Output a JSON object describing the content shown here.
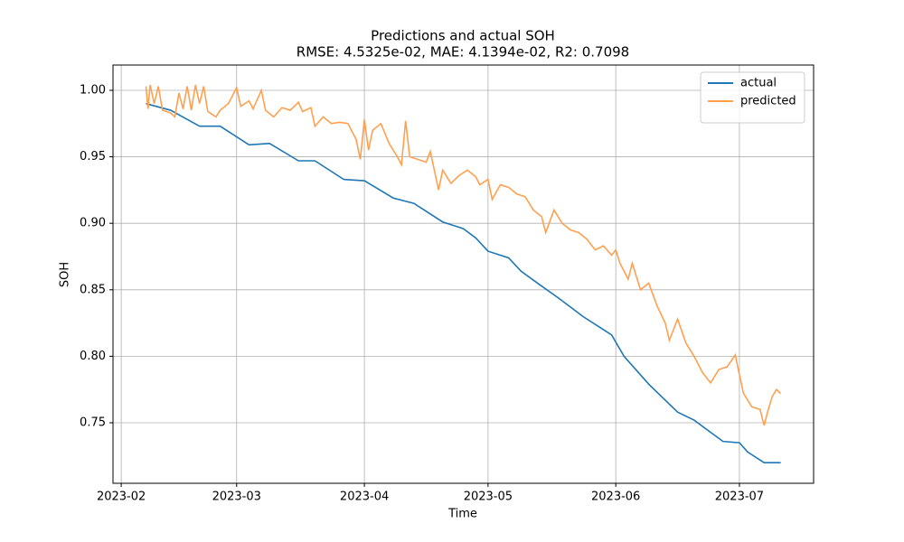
{
  "chart_data": {
    "type": "line",
    "title": "Predictions and actual SOH",
    "subtitle": "RMSE: 4.5325e-02, MAE: 4.1394e-02, R2: 0.7098",
    "x_label": "Time",
    "y_label": "SOH",
    "xlim": [
      29,
      199
    ],
    "xticks": [
      {
        "value": 31,
        "label": "2023-02"
      },
      {
        "value": 59,
        "label": "2023-03"
      },
      {
        "value": 90,
        "label": "2023-04"
      },
      {
        "value": 120,
        "label": "2023-05"
      },
      {
        "value": 151,
        "label": "2023-06"
      },
      {
        "value": 181,
        "label": "2023-07"
      }
    ],
    "ylim": [
      0.7045,
      1.019
    ],
    "yticks": [
      0.75,
      {
        "value": 0.8,
        "label": "0.80"
      },
      0.85,
      {
        "value": 0.9,
        "label": "0.90"
      },
      0.95,
      {
        "value": 1.0,
        "label": "1.00"
      }
    ],
    "grid": true,
    "legend": "upper right",
    "series": [
      {
        "name": "actual",
        "color": "#1f77b4",
        "x": [
          37,
          43,
          50,
          55,
          62,
          67,
          74,
          78,
          85,
          90,
          97,
          102,
          109,
          114,
          117,
          120,
          125,
          128,
          132,
          137,
          143,
          148,
          150,
          153,
          159,
          166,
          170,
          177,
          181,
          183,
          187,
          191
        ],
        "values": [
          0.99,
          0.985,
          0.973,
          0.973,
          0.959,
          0.96,
          0.947,
          0.947,
          0.933,
          0.932,
          0.919,
          0.915,
          0.901,
          0.896,
          0.889,
          0.879,
          0.874,
          0.864,
          0.855,
          0.844,
          0.83,
          0.82,
          0.816,
          0.8,
          0.779,
          0.758,
          0.752,
          0.736,
          0.735,
          0.728,
          0.72,
          0.72
        ]
      },
      {
        "name": "predicted",
        "color": "#ffa04f",
        "x": [
          37,
          37.5,
          38,
          39,
          40,
          41,
          43,
          44,
          45,
          46,
          47,
          48,
          49,
          50,
          51,
          52,
          54,
          55,
          57,
          59,
          60,
          62,
          63,
          65,
          66,
          68,
          70,
          72,
          74,
          75,
          77,
          78,
          80,
          82,
          84,
          86,
          88,
          89,
          90,
          91,
          92,
          94,
          96,
          98,
          99,
          100,
          101,
          103,
          105,
          106,
          108,
          109,
          111,
          113,
          115,
          117,
          118,
          120,
          121,
          123,
          125,
          127,
          129,
          131,
          133,
          134,
          136,
          138,
          140,
          142,
          144,
          146,
          148,
          150,
          151,
          152,
          154,
          155,
          157,
          159,
          161,
          163,
          164,
          166,
          168,
          170,
          172,
          174,
          176,
          178,
          180,
          181,
          182,
          184,
          186,
          187,
          188,
          189,
          190,
          191
        ],
        "values": [
          1.003,
          0.986,
          1.004,
          0.99,
          1.003,
          0.985,
          0.983,
          0.98,
          0.998,
          0.986,
          1.003,
          0.985,
          1.004,
          0.99,
          1.003,
          0.984,
          0.98,
          0.985,
          0.99,
          1.002,
          0.988,
          0.992,
          0.986,
          1.0,
          0.985,
          0.98,
          0.987,
          0.985,
          0.991,
          0.984,
          0.987,
          0.973,
          0.98,
          0.975,
          0.976,
          0.975,
          0.963,
          0.948,
          0.978,
          0.955,
          0.97,
          0.975,
          0.96,
          0.95,
          0.944,
          0.977,
          0.95,
          0.948,
          0.946,
          0.954,
          0.925,
          0.94,
          0.93,
          0.936,
          0.94,
          0.935,
          0.929,
          0.933,
          0.918,
          0.929,
          0.927,
          0.922,
          0.92,
          0.91,
          0.905,
          0.893,
          0.91,
          0.9,
          0.895,
          0.893,
          0.888,
          0.88,
          0.883,
          0.876,
          0.88,
          0.87,
          0.858,
          0.87,
          0.85,
          0.855,
          0.838,
          0.825,
          0.812,
          0.828,
          0.81,
          0.8,
          0.788,
          0.78,
          0.79,
          0.792,
          0.801,
          0.786,
          0.772,
          0.762,
          0.76,
          0.748,
          0.76,
          0.77,
          0.775,
          0.772
        ]
      }
    ]
  }
}
